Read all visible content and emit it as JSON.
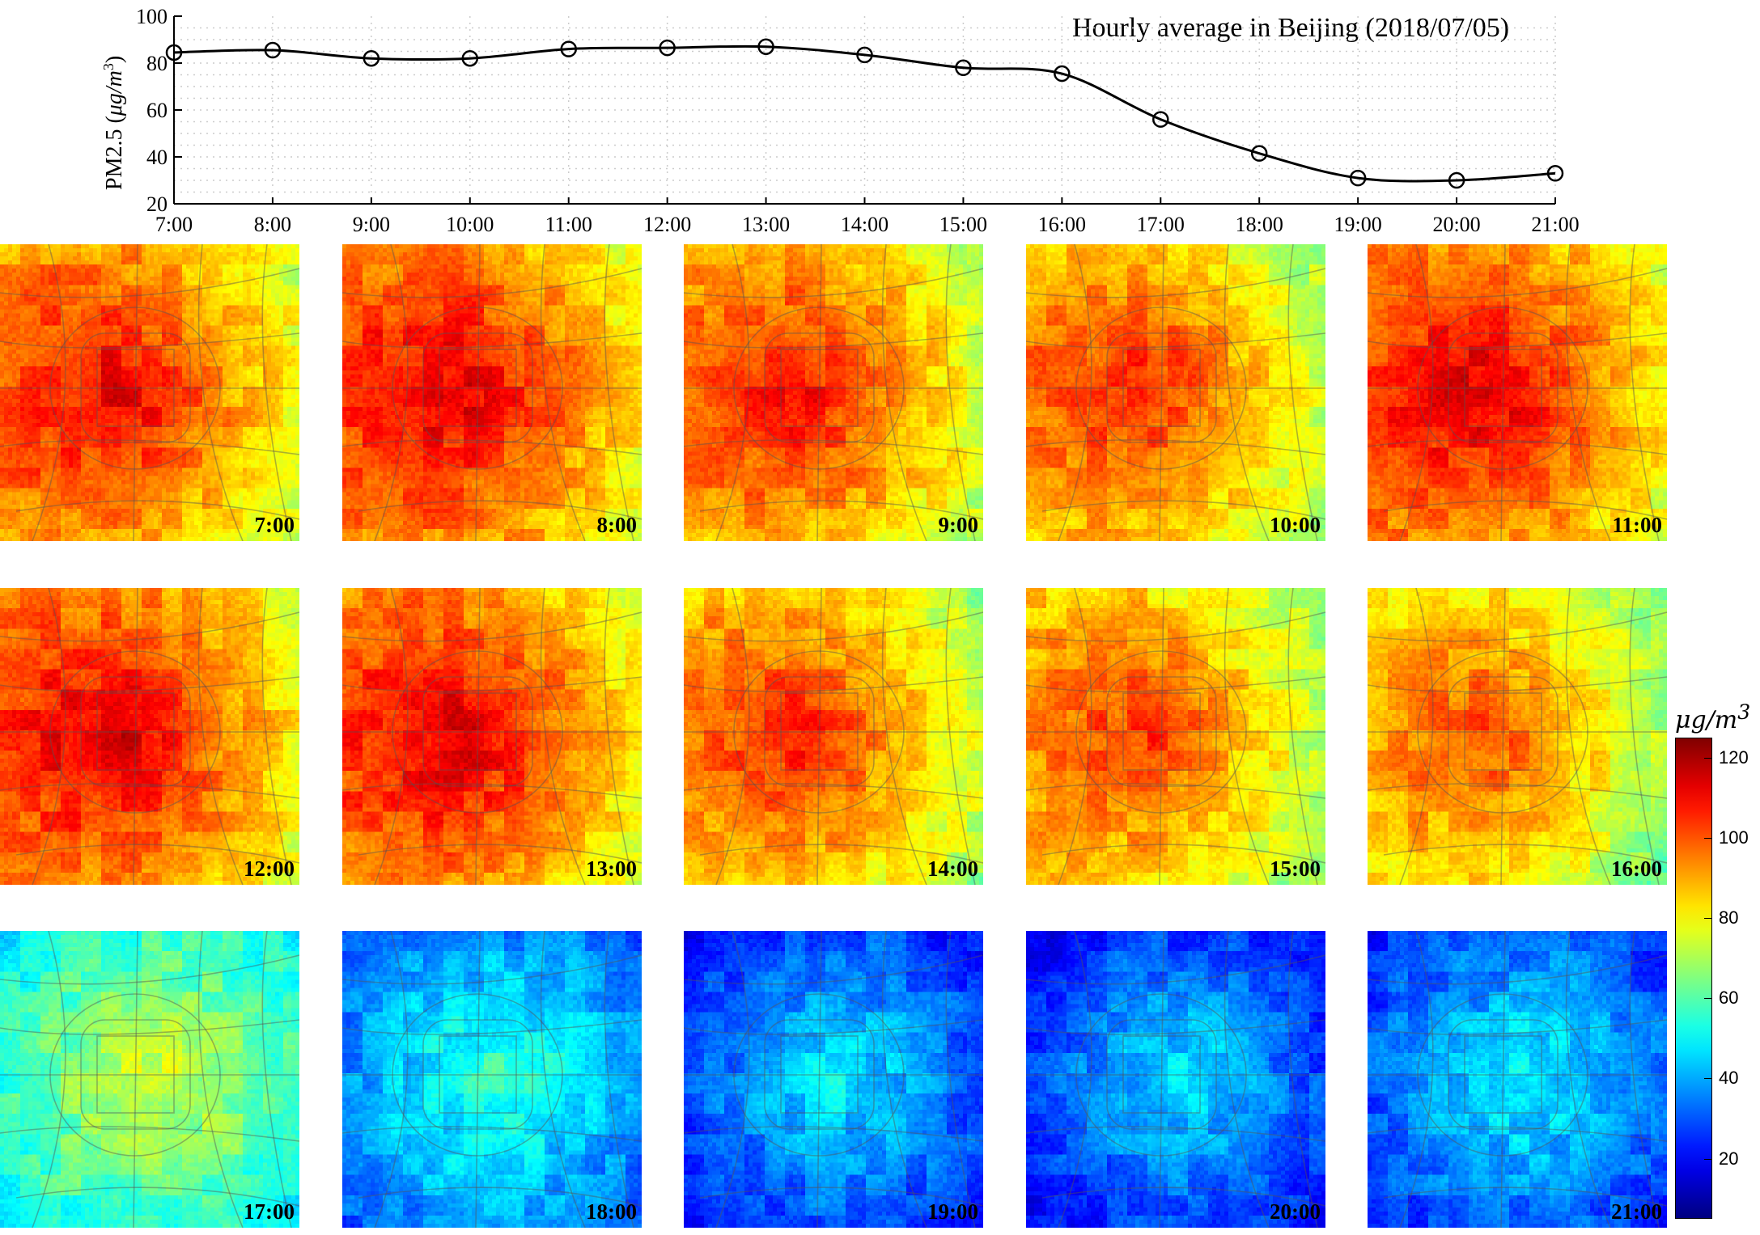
{
  "chart_data": [
    {
      "type": "line",
      "title": "Hourly average in Beijing (2018/07/05)",
      "ylabel": "PM2.5 (μg/m³)",
      "ylabel_parts": {
        "pre": "PM2.5 (",
        "unit": "μg/m",
        "sup": "3",
        "post": ")"
      },
      "xlabel": "",
      "ylim": [
        20,
        100
      ],
      "yticks": [
        20,
        40,
        60,
        80,
        100
      ],
      "grid": true,
      "marker": "circle",
      "categories": [
        "7:00",
        "8:00",
        "9:00",
        "10:00",
        "11:00",
        "12:00",
        "13:00",
        "14:00",
        "15:00",
        "16:00",
        "17:00",
        "18:00",
        "19:00",
        "20:00",
        "21:00"
      ],
      "values": [
        84.5,
        85.5,
        82,
        82,
        86,
        86.5,
        87,
        83.5,
        78,
        75.5,
        56,
        41.5,
        31,
        30,
        33
      ]
    },
    {
      "type": "heatmap",
      "colorbar": {
        "unit": "μg/m³",
        "unit_parts": {
          "base": "μg/m",
          "sup": "3"
        },
        "range": [
          5,
          125
        ],
        "ticks": [
          20,
          40,
          60,
          80,
          100,
          120
        ],
        "colormap": "jet"
      },
      "panels": [
        {
          "label": "7:00",
          "level": 0.78
        },
        {
          "label": "8:00",
          "level": 0.8
        },
        {
          "label": "9:00",
          "level": 0.76
        },
        {
          "label": "10:00",
          "level": 0.74
        },
        {
          "label": "11:00",
          "level": 0.8
        },
        {
          "label": "12:00",
          "level": 0.8
        },
        {
          "label": "13:00",
          "level": 0.8
        },
        {
          "label": "14:00",
          "level": 0.74
        },
        {
          "label": "15:00",
          "level": 0.72
        },
        {
          "label": "16:00",
          "level": 0.7
        },
        {
          "label": "17:00",
          "level": 0.5
        },
        {
          "label": "18:00",
          "level": 0.34
        },
        {
          "label": "19:00",
          "level": 0.27
        },
        {
          "label": "20:00",
          "level": 0.26
        },
        {
          "label": "21:00",
          "level": 0.29
        }
      ]
    }
  ],
  "colors": {
    "line": "#000000",
    "grid": "#cccccc",
    "road": "#555555"
  }
}
